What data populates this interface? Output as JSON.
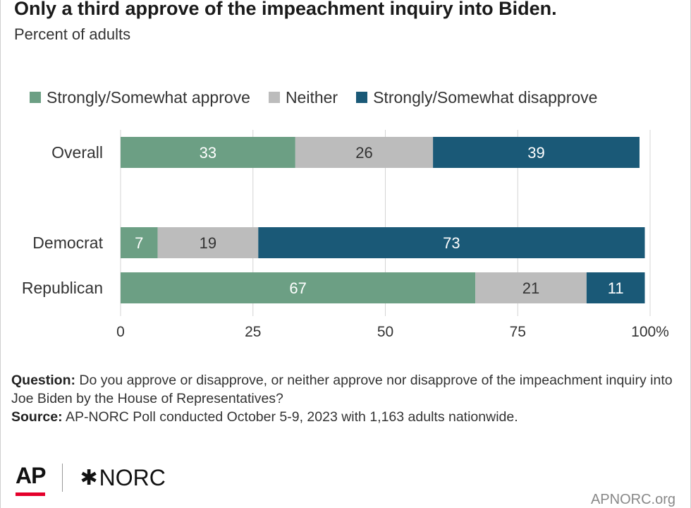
{
  "header": {
    "title": "Only a third approve of the impeachment inquiry into Biden.",
    "subtitle": "Percent of adults"
  },
  "colors": {
    "approve": "#6c9f84",
    "neither": "#bcbcbc",
    "disapprove": "#1a5977",
    "grid": "#d4d4d4"
  },
  "chart_data": {
    "type": "bar",
    "orientation": "horizontal",
    "stacked": true,
    "categories": [
      "Overall",
      "Democrat",
      "Republican"
    ],
    "series": [
      {
        "name": "Strongly/Somewhat approve",
        "values": [
          33,
          7,
          67
        ]
      },
      {
        "name": "Neither",
        "values": [
          26,
          19,
          21
        ]
      },
      {
        "name": "Strongly/Somewhat disapprove",
        "values": [
          39,
          73,
          11
        ]
      }
    ],
    "xlim": [
      0,
      100
    ],
    "xticks": [
      0,
      25,
      50,
      75,
      100
    ],
    "xtick_labels": [
      "0",
      "25",
      "50",
      "75",
      "100%"
    ],
    "grid": true,
    "legend": "top"
  },
  "notes": {
    "question_label": "Question:",
    "question_text": "Do you approve or disapprove, or neither approve nor disapprove of the impeachment inquiry into Joe Biden by the House of Representatives?",
    "source_label": "Source:",
    "source_text": "AP-NORC Poll conducted October 5-9, 2023 with 1,163 adults nationwide."
  },
  "footer": {
    "ap_logo": "AP",
    "norc_logo": "NORC",
    "site": "APNORC.org"
  }
}
